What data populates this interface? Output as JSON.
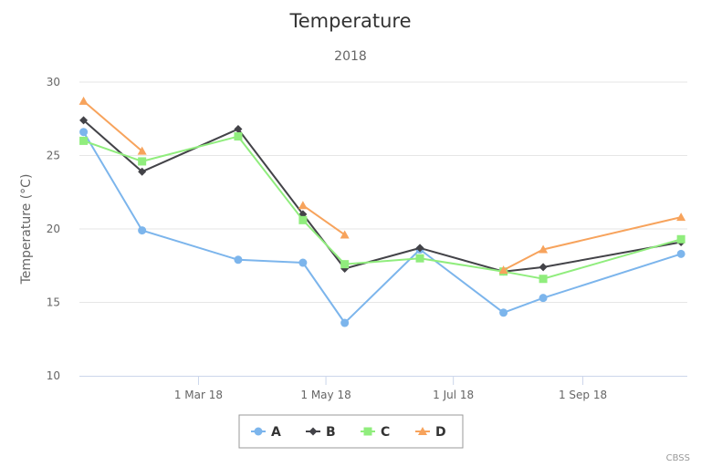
{
  "chart_data": {
    "type": "line",
    "title": "Temperature",
    "subtitle": "2018",
    "ylabel": "Temperature (°C)",
    "xlabel": "",
    "ylim": [
      10,
      30
    ],
    "yticks": [
      10,
      15,
      20,
      25,
      30
    ],
    "xlim": [
      "2018-01-03",
      "2018-10-21"
    ],
    "xticks": [
      {
        "date": "2018-03-01",
        "label": "1 Mar 18"
      },
      {
        "date": "2018-05-01",
        "label": "1 May 18"
      },
      {
        "date": "2018-07-01",
        "label": "1 Jul 18"
      },
      {
        "date": "2018-09-01",
        "label": "1 Sep 18"
      }
    ],
    "grid": "horizontal",
    "legend_position": "bottom-center",
    "series": [
      {
        "name": "A",
        "color": "#7cb5ec",
        "marker": "circle",
        "points": [
          [
            "2018-01-05",
            26.6
          ],
          [
            "2018-02-02",
            19.9
          ],
          [
            "2018-03-20",
            17.9
          ],
          [
            "2018-04-20",
            17.7
          ],
          [
            "2018-05-10",
            13.6
          ],
          [
            "2018-06-15",
            18.6
          ],
          [
            "2018-07-25",
            14.3
          ],
          [
            "2018-08-13",
            15.3
          ],
          [
            "2018-10-18",
            18.3
          ]
        ]
      },
      {
        "name": "B",
        "color": "#434348",
        "marker": "diamond",
        "points": [
          [
            "2018-01-05",
            27.4
          ],
          [
            "2018-02-02",
            23.9
          ],
          [
            "2018-03-20",
            26.8
          ],
          [
            "2018-04-20",
            21.0
          ],
          [
            "2018-05-10",
            17.3
          ],
          [
            "2018-06-15",
            18.7
          ],
          [
            "2018-07-25",
            17.1
          ],
          [
            "2018-08-13",
            17.4
          ],
          [
            "2018-10-18",
            19.1
          ]
        ]
      },
      {
        "name": "C",
        "color": "#90ed7d",
        "marker": "square",
        "points": [
          [
            "2018-01-05",
            26.0
          ],
          [
            "2018-02-02",
            24.6
          ],
          [
            "2018-03-20",
            26.3
          ],
          [
            "2018-04-20",
            20.6
          ],
          [
            "2018-05-10",
            17.6
          ],
          [
            "2018-06-15",
            18.0
          ],
          [
            "2018-07-25",
            17.1
          ],
          [
            "2018-08-13",
            16.6
          ],
          [
            "2018-10-18",
            19.3
          ]
        ]
      },
      {
        "name": "D",
        "color": "#f7a35c",
        "marker": "triangle",
        "segments": [
          [
            [
              "2018-01-05",
              28.7
            ],
            [
              "2018-02-02",
              25.3
            ]
          ],
          [
            [
              "2018-04-20",
              21.6
            ],
            [
              "2018-05-10",
              19.6
            ]
          ],
          [
            [
              "2018-07-25",
              17.2
            ],
            [
              "2018-08-13",
              18.6
            ],
            [
              "2018-10-18",
              20.8
            ]
          ]
        ]
      }
    ],
    "credits": "CBSS"
  }
}
